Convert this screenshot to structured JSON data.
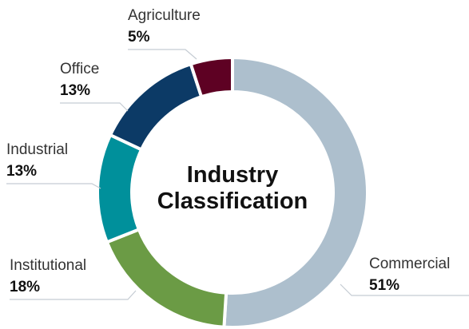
{
  "chart_data": {
    "type": "donut",
    "title": "Industry Classification",
    "categories": [
      "Commercial",
      "Institutional",
      "Industrial",
      "Office",
      "Agriculture"
    ],
    "values": [
      51,
      18,
      13,
      13,
      5
    ],
    "value_labels": [
      "51%",
      "18%",
      "13%",
      "13%",
      "5%"
    ],
    "colors": [
      "#adbfcd",
      "#6b9b45",
      "#00909b",
      "#0c3a66",
      "#5e0123"
    ]
  }
}
